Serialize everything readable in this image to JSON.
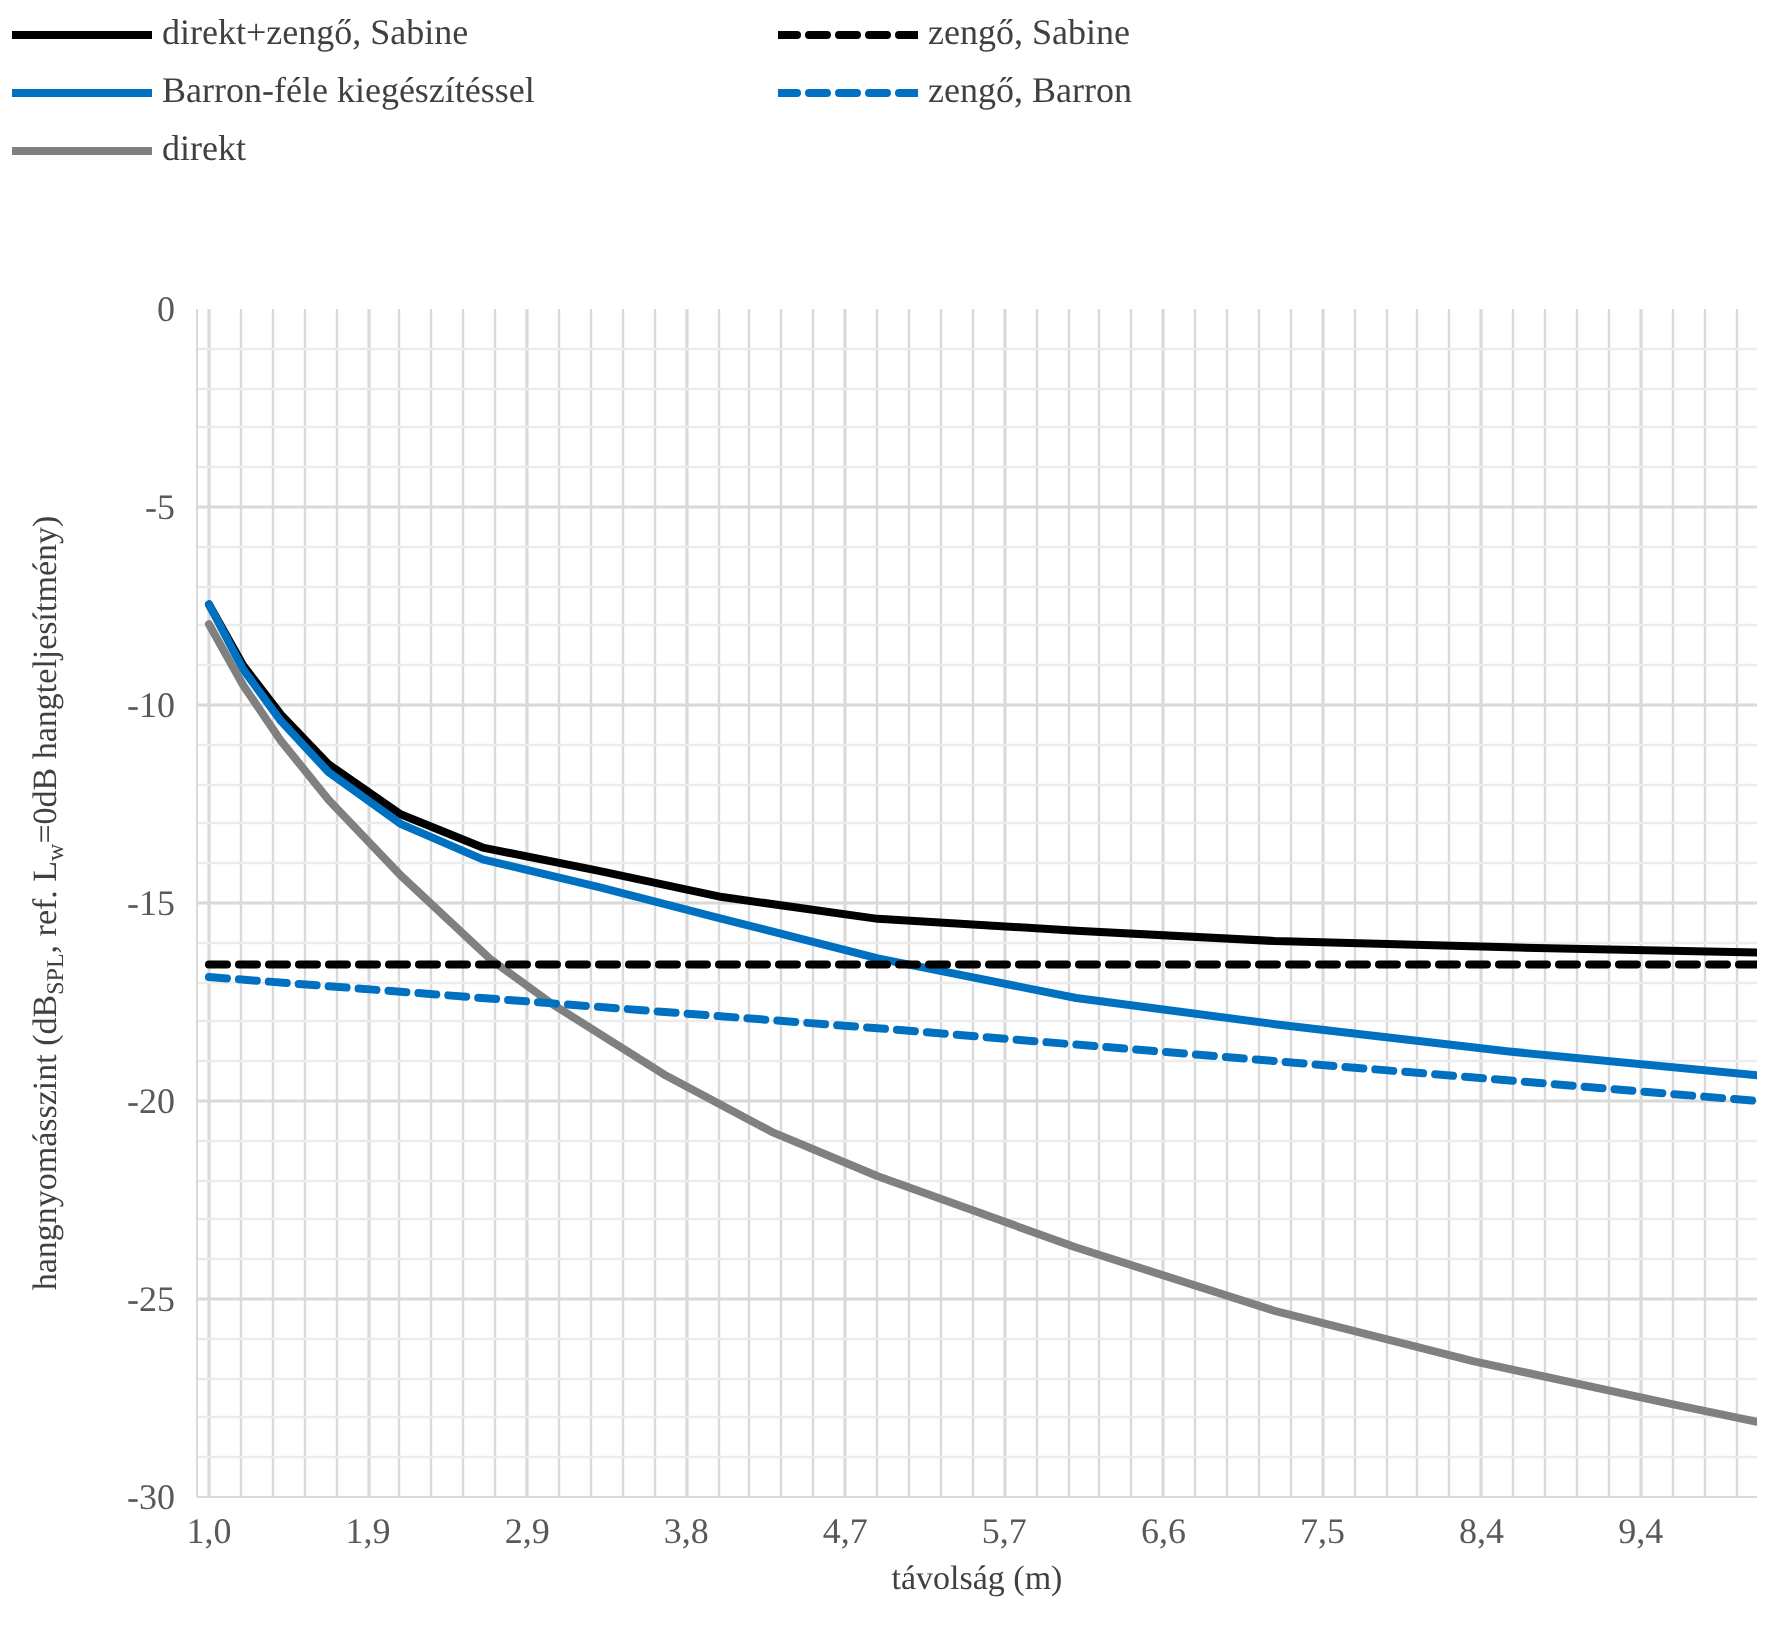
{
  "chart_data": {
    "type": "line",
    "xlabel": "távolság (m)",
    "ylabel": "hangnyomásszint (dB$_{SPL}$, ref. L$_{w}$=0dB hangteljesítmény)",
    "xlim": [
      0.93,
      10.05
    ],
    "xticks": [
      {
        "value": 1.0,
        "label": "1,0"
      },
      {
        "value": 1.93,
        "label": "1,9"
      },
      {
        "value": 2.86,
        "label": "2,9"
      },
      {
        "value": 3.79,
        "label": "3,8"
      },
      {
        "value": 4.72,
        "label": "4,7"
      },
      {
        "value": 5.65,
        "label": "5,7"
      },
      {
        "value": 6.58,
        "label": "6,6"
      },
      {
        "value": 7.51,
        "label": "7,5"
      },
      {
        "value": 8.44,
        "label": "8,4"
      },
      {
        "value": 9.37,
        "label": "9,4"
      }
    ],
    "ylim": [
      -30,
      0
    ],
    "yticks": [
      0,
      -5,
      -10,
      -15,
      -20,
      -25,
      -30
    ],
    "grid": true,
    "legend": "top",
    "x": [
      1.0,
      1.2,
      1.42,
      1.7,
      2.12,
      2.6,
      3.28,
      4.0,
      4.91,
      6.07,
      7.23,
      8.6,
      10.05
    ],
    "series": [
      {
        "name": "direkt+zengő, Sabine",
        "color": "#000000",
        "line_style": "solid",
        "values": [
          -7.46,
          -9.0,
          -10.24,
          -11.5,
          -12.76,
          -13.6,
          -14.19,
          -14.85,
          -15.4,
          -15.7,
          -15.96,
          -16.12,
          -16.25
        ]
      },
      {
        "name": "Barron-féle kiegészítéssel",
        "color": "#0070c0",
        "line_style": "solid",
        "values": [
          -7.46,
          -9.1,
          -10.4,
          -11.7,
          -13.0,
          -13.9,
          -14.6,
          -15.4,
          -16.4,
          -17.4,
          -18.06,
          -18.75,
          -19.35
        ]
      },
      {
        "name": "direkt",
        "color": "#808080",
        "line_style": "solid",
        "x": [
          1.0,
          1.2,
          1.42,
          1.7,
          2.12,
          2.64,
          3.01,
          3.66,
          4.3,
          4.91,
          6.07,
          7.23,
          8.39,
          9.56,
          10.05
        ],
        "values": [
          -7.96,
          -9.5,
          -10.9,
          -12.4,
          -14.3,
          -16.4,
          -17.56,
          -19.33,
          -20.8,
          -21.9,
          -23.7,
          -25.3,
          -26.57,
          -27.66,
          -28.1
        ]
      },
      {
        "name": "zengő, Sabine",
        "color": "#000000",
        "line_style": "dashed",
        "x": [
          1.0,
          10.05
        ],
        "values": [
          -16.55,
          -16.55
        ]
      },
      {
        "name": "zengő, Barron",
        "color": "#0070c0",
        "line_style": "dashed",
        "x": [
          1.0,
          5.02,
          10.05
        ],
        "values": [
          -16.87,
          -18.2,
          -20.0
        ]
      }
    ]
  }
}
